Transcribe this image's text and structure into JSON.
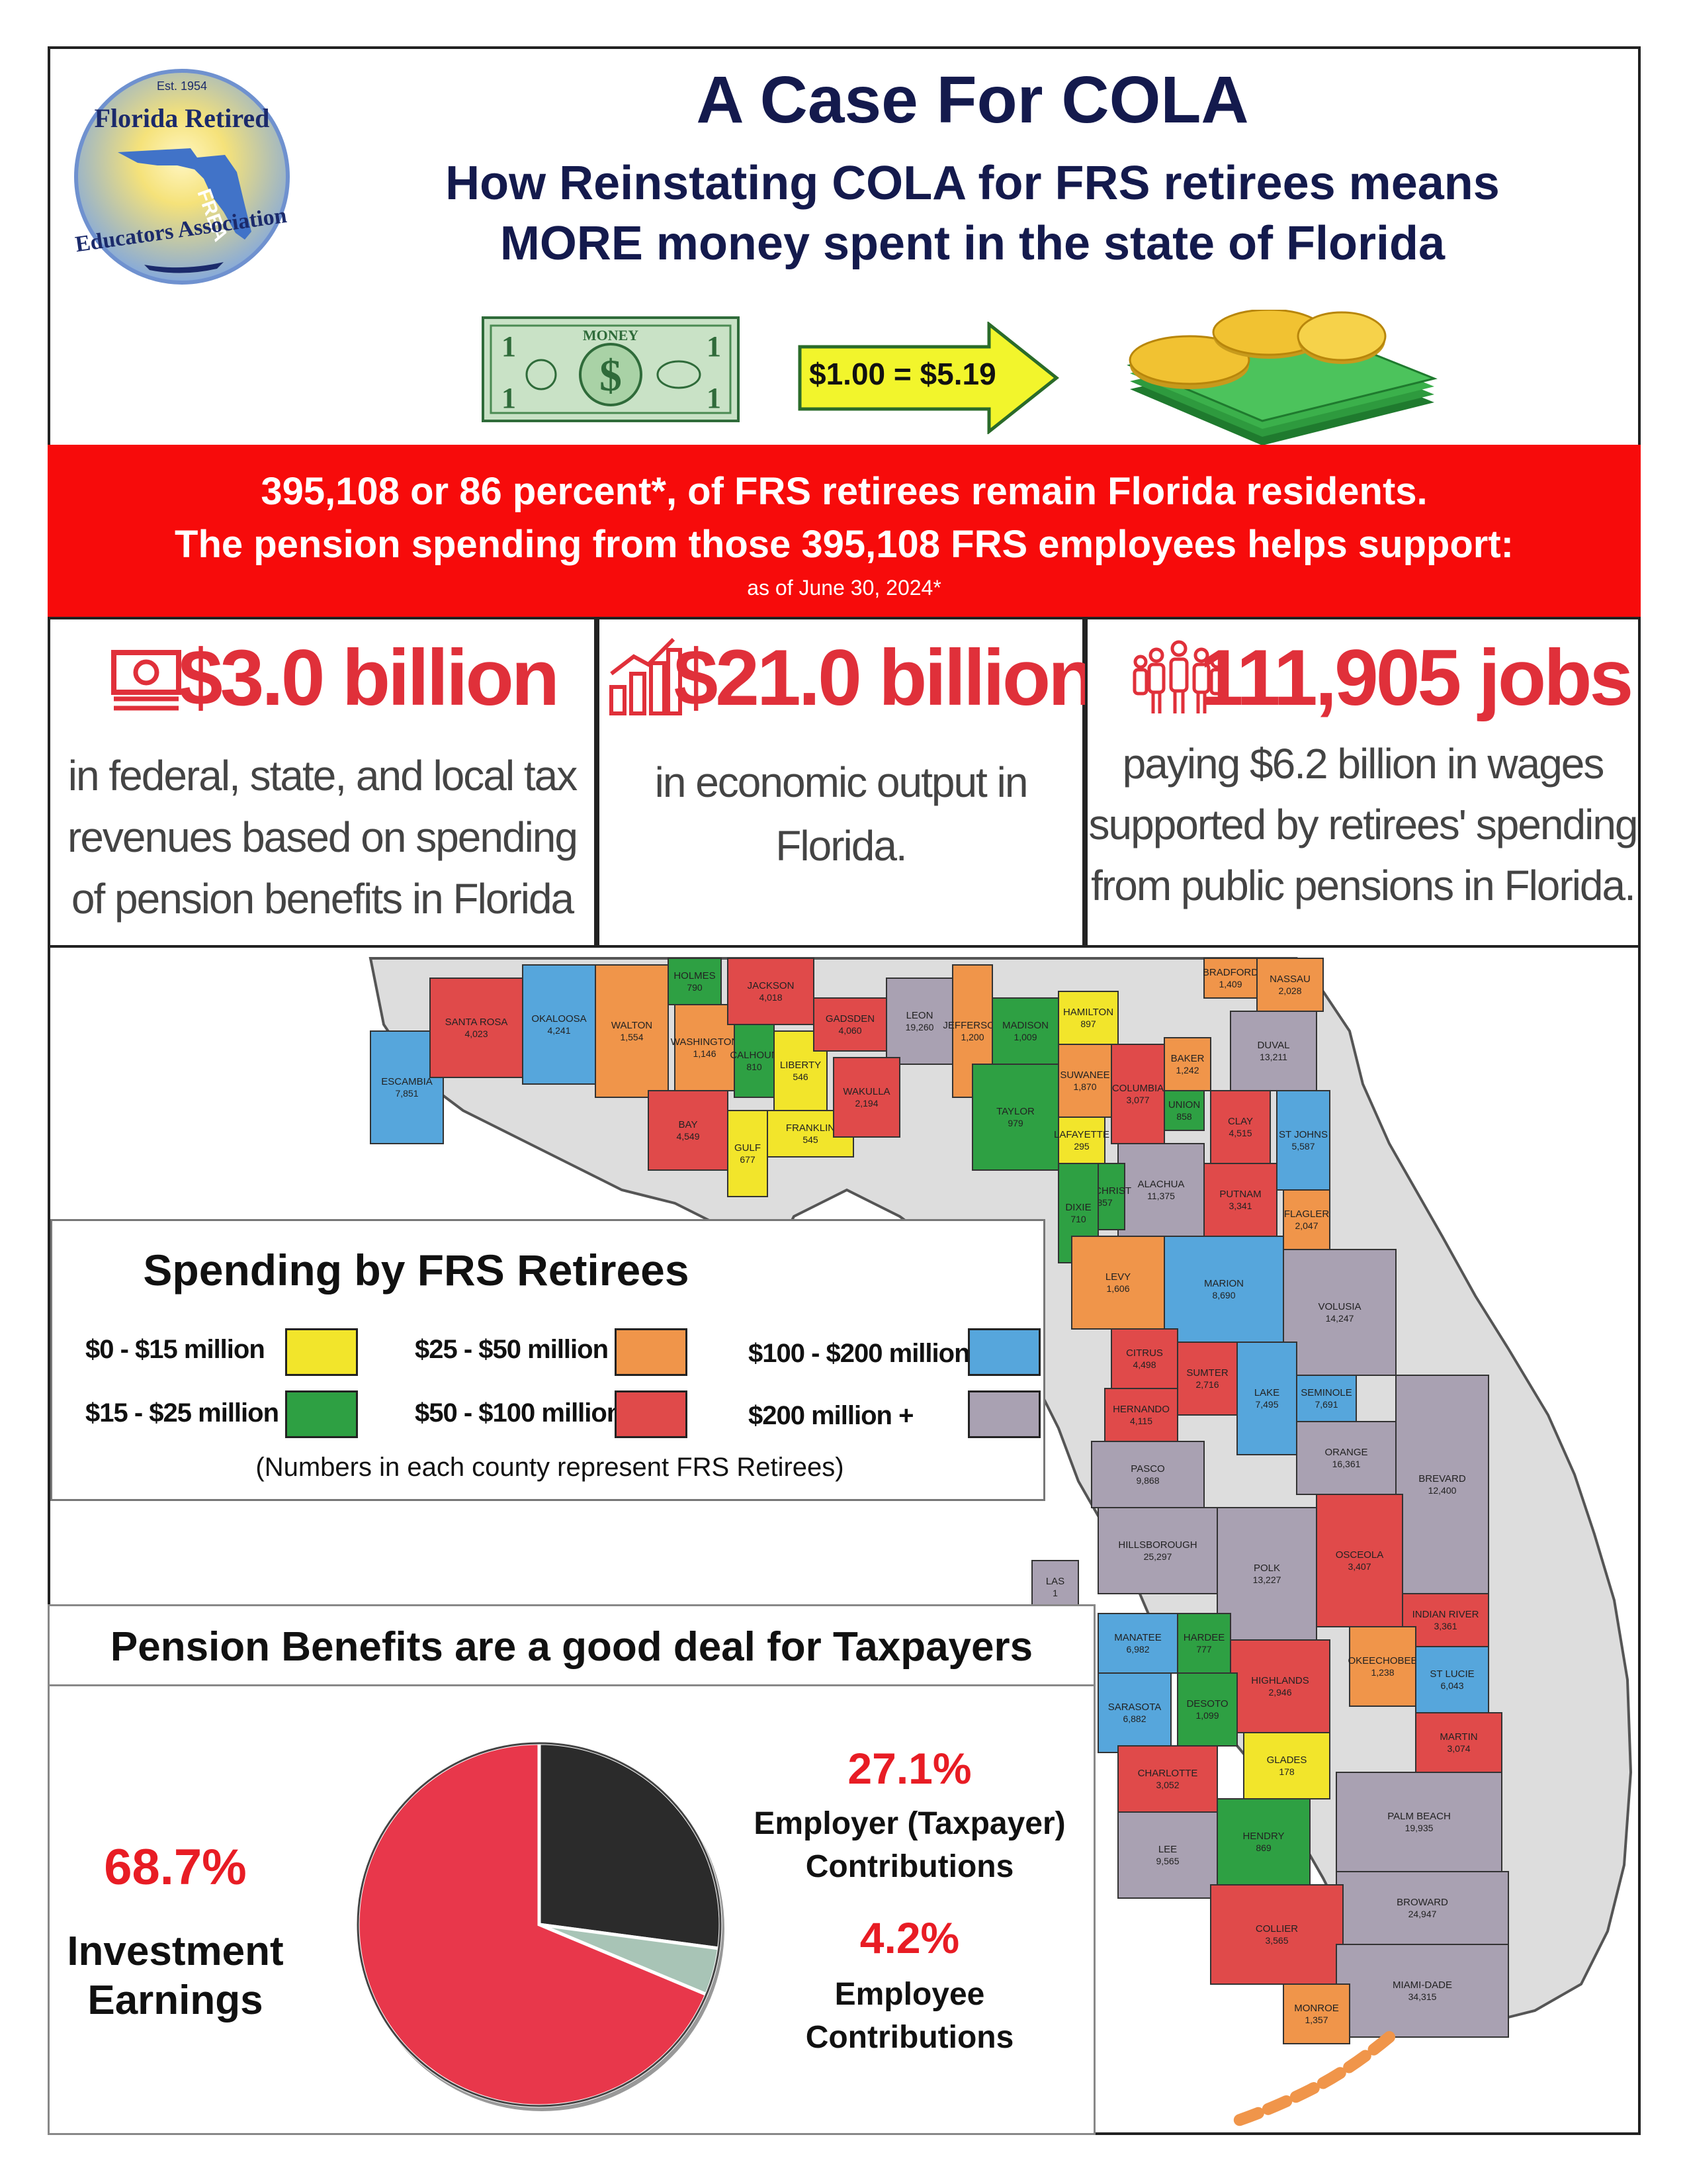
{
  "header": {
    "title": "A Case For COLA",
    "subtitle_line1": "How Reinstating COLA for FRS retirees means",
    "subtitle_line2": "MORE money spent in the state of Florida",
    "logo": {
      "est": "Est. 1954",
      "top": "Florida Retired",
      "bottom": "Educators Association",
      "badge": "FREA"
    },
    "bill_label": "MONEY",
    "multiplier": "$1.00 = $5.19"
  },
  "banner": {
    "line1": "395,108 or 86 percent*, of FRS retirees remain Florida residents.",
    "line2": "The pension spending from those 395,108 FRS employees helps support:",
    "note": "as of June 30, 2024*"
  },
  "stats": [
    {
      "icon": "money-stack-icon",
      "value": "$3.0 billion",
      "text": [
        "in federal, state, and local tax",
        "revenues based on spending",
        "of pension benefits in Florida"
      ]
    },
    {
      "icon": "growth-chart-icon",
      "value": "$21.0 billion",
      "text": [
        "in economic output in",
        "Florida."
      ]
    },
    {
      "icon": "people-icon",
      "value": "111,905 jobs",
      "text": [
        "paying $6.2 billion in wages",
        "supported by retirees' spending",
        "from public pensions in Florida."
      ]
    }
  ],
  "legend": {
    "title": "Spending by FRS Retirees",
    "items": [
      {
        "label": "$0 - $15 million",
        "color": "#f2e52b"
      },
      {
        "label": "$15 - $25 million",
        "color": "#2ea043"
      },
      {
        "label": "$25 - $50 million",
        "color": "#f0954a"
      },
      {
        "label": "$50 - $100 million",
        "color": "#e04a4a"
      },
      {
        "label": "$100 - $200 million",
        "color": "#56a6dc"
      },
      {
        "label": "$200 million +",
        "color": "#a9a1b2"
      }
    ],
    "note": "(Numbers in each county represent FRS Retirees)"
  },
  "counties": [
    {
      "name": "ESCAMBIA",
      "num": "7,851",
      "color": "#56a6dc"
    },
    {
      "name": "SANTA ROSA",
      "num": "4,023",
      "color": "#e04a4a"
    },
    {
      "name": "OKALOOSA",
      "num": "4,241",
      "color": "#56a6dc"
    },
    {
      "name": "WALTON",
      "num": "1,554",
      "color": "#f0954a"
    },
    {
      "name": "HOLMES",
      "num": "790",
      "color": "#2ea043"
    },
    {
      "name": "WASHINGTON",
      "num": "1,146",
      "color": "#f0954a"
    },
    {
      "name": "BAY",
      "num": "4,549",
      "color": "#e04a4a"
    },
    {
      "name": "JACKSON",
      "num": "4,018",
      "color": "#e04a4a"
    },
    {
      "name": "CALHOUN",
      "num": "810",
      "color": "#2ea043"
    },
    {
      "name": "GULF",
      "num": "677",
      "color": "#f2e52b"
    },
    {
      "name": "LIBERTY",
      "num": "546",
      "color": "#f2e52b"
    },
    {
      "name": "FRANKLIN",
      "num": "545",
      "color": "#f2e52b"
    },
    {
      "name": "GADSDEN",
      "num": "4,060",
      "color": "#e04a4a"
    },
    {
      "name": "LEON",
      "num": "19,260",
      "color": "#a9a1b2"
    },
    {
      "name": "WAKULLA",
      "num": "2,194",
      "color": "#e04a4a"
    },
    {
      "name": "JEFFERSON",
      "num": "1,200",
      "color": "#f0954a"
    },
    {
      "name": "MADISON",
      "num": "1,009",
      "color": "#2ea043"
    },
    {
      "name": "TAYLOR",
      "num": "979",
      "color": "#2ea043"
    },
    {
      "name": "HAMILTON",
      "num": "897",
      "color": "#f2e52b"
    },
    {
      "name": "SUWANEE",
      "num": "1,870",
      "color": "#f0954a"
    },
    {
      "name": "LAFAYETTE",
      "num": "295",
      "color": "#f2e52b"
    },
    {
      "name": "COLUMBIA",
      "num": "3,077",
      "color": "#e04a4a"
    },
    {
      "name": "BAKER",
      "num": "1,242",
      "color": "#f0954a"
    },
    {
      "name": "UNION",
      "num": "858",
      "color": "#2ea043"
    },
    {
      "name": "BRADFORD",
      "num": "1,409",
      "color": "#f0954a"
    },
    {
      "name": "NASSAU",
      "num": "2,028",
      "color": "#f0954a"
    },
    {
      "name": "DUVAL",
      "num": "13,211",
      "color": "#a9a1b2"
    },
    {
      "name": "CLAY",
      "num": "4,515",
      "color": "#e04a4a"
    },
    {
      "name": "ST JOHNS",
      "num": "5,587",
      "color": "#56a6dc"
    },
    {
      "name": "PUTNAM",
      "num": "3,341",
      "color": "#e04a4a"
    },
    {
      "name": "FLAGLER",
      "num": "2,047",
      "color": "#f0954a"
    },
    {
      "name": "ALACHUA",
      "num": "11,375",
      "color": "#a9a1b2"
    },
    {
      "name": "GILCHRIST",
      "num": "857",
      "color": "#2ea043"
    },
    {
      "name": "DIXIE",
      "num": "710",
      "color": "#2ea043"
    },
    {
      "name": "LEVY",
      "num": "1,606",
      "color": "#f0954a"
    },
    {
      "name": "MARION",
      "num": "8,690",
      "color": "#56a6dc"
    },
    {
      "name": "VOLUSIA",
      "num": "14,247",
      "color": "#a9a1b2"
    },
    {
      "name": "CITRUS",
      "num": "4,498",
      "color": "#e04a4a"
    },
    {
      "name": "SUMTER",
      "num": "2,716",
      "color": "#e04a4a"
    },
    {
      "name": "LAKE",
      "num": "7,495",
      "color": "#56a6dc"
    },
    {
      "name": "SEMINOLE",
      "num": "7,691",
      "color": "#56a6dc"
    },
    {
      "name": "HERNANDO",
      "num": "4,115",
      "color": "#e04a4a"
    },
    {
      "name": "ORANGE",
      "num": "16,361",
      "color": "#a9a1b2"
    },
    {
      "name": "BREVARD",
      "num": "12,400",
      "color": "#a9a1b2"
    },
    {
      "name": "PASCO",
      "num": "9,868",
      "color": "#a9a1b2"
    },
    {
      "name": "OSCEOLA",
      "num": "3,407",
      "color": "#e04a4a"
    },
    {
      "name": "HILLSBOROUGH",
      "num": "25,297",
      "color": "#a9a1b2"
    },
    {
      "name": "POLK",
      "num": "13,227",
      "color": "#a9a1b2"
    },
    {
      "name": "INDIAN RIVER",
      "num": "3,361",
      "color": "#e04a4a"
    },
    {
      "name": "OKEECHOBEE",
      "num": "1,238",
      "color": "#f0954a"
    },
    {
      "name": "MANATEE",
      "num": "6,982",
      "color": "#56a6dc"
    },
    {
      "name": "HARDEE",
      "num": "777",
      "color": "#2ea043"
    },
    {
      "name": "ST LUCIE",
      "num": "6,043",
      "color": "#56a6dc"
    },
    {
      "name": "HIGHLANDS",
      "num": "2,946",
      "color": "#e04a4a"
    },
    {
      "name": "DESOTO",
      "num": "1,099",
      "color": "#2ea043"
    },
    {
      "name": "SARASOTA",
      "num": "6,882",
      "color": "#56a6dc"
    },
    {
      "name": "MARTIN",
      "num": "3,074",
      "color": "#e04a4a"
    },
    {
      "name": "GLADES",
      "num": "178",
      "color": "#f2e52b"
    },
    {
      "name": "CHARLOTTE",
      "num": "3,052",
      "color": "#e04a4a"
    },
    {
      "name": "LEE",
      "num": "9,565",
      "color": "#a9a1b2"
    },
    {
      "name": "HENDRY",
      "num": "869",
      "color": "#2ea043"
    },
    {
      "name": "PALM BEACH",
      "num": "19,935",
      "color": "#a9a1b2"
    },
    {
      "name": "BROWARD",
      "num": "24,947",
      "color": "#a9a1b2"
    },
    {
      "name": "COLLIER",
      "num": "3,565",
      "color": "#e04a4a"
    },
    {
      "name": "MIAMI-DADE",
      "num": "34,315",
      "color": "#a9a1b2"
    },
    {
      "name": "MONROE",
      "num": "1,357",
      "color": "#f0954a"
    },
    {
      "name": "LAS",
      "num": "1",
      "color": "#a9a1b2"
    }
  ],
  "pension": {
    "heading": "Pension Benefits are a good deal for Taxpayers",
    "slices": [
      {
        "label_lines": [
          "Investment",
          "Earnings"
        ],
        "pct": "68.7%",
        "value": 68.7,
        "color": "#e8374b"
      },
      {
        "label_lines": [
          "Employer (Taxpayer)",
          "Contributions"
        ],
        "pct": "27.1%",
        "value": 27.1,
        "color": "#2b2b2b"
      },
      {
        "label_lines": [
          "Employee",
          "Contributions"
        ],
        "pct": "4.2%",
        "value": 4.2,
        "color": "#a8c4b6"
      }
    ]
  },
  "chart_data": {
    "type": "pie",
    "title": "Pension Benefits are a good deal for Taxpayers",
    "categories": [
      "Investment Earnings",
      "Employer (Taxpayer) Contributions",
      "Employee Contributions"
    ],
    "values": [
      68.7,
      27.1,
      4.2
    ],
    "colors": [
      "#e8374b",
      "#2b2b2b",
      "#a8c4b6"
    ]
  }
}
